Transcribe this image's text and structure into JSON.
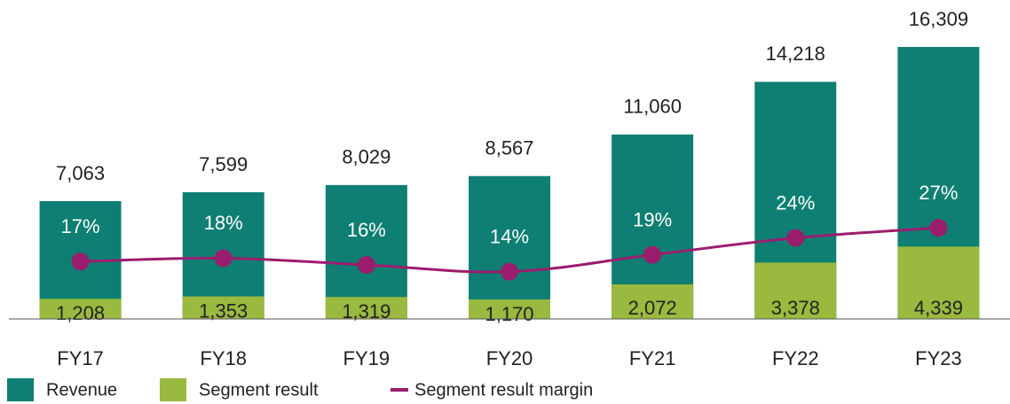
{
  "chart_data": {
    "type": "bar-line",
    "categories": [
      "FY17",
      "FY18",
      "FY19",
      "FY20",
      "FY21",
      "FY22",
      "FY23"
    ],
    "series": [
      {
        "name": "Revenue",
        "color": "#0e7f72",
        "values": [
          7063,
          7599,
          8029,
          8567,
          11060,
          14218,
          16309
        ],
        "value_labels": [
          "7,063",
          "7,599",
          "8,029",
          "8,567",
          "11,060",
          "14,218",
          "16,309"
        ]
      },
      {
        "name": "Segment result",
        "color": "#9ab93f",
        "values": [
          1208,
          1353,
          1319,
          1170,
          2072,
          3378,
          4339
        ],
        "value_labels": [
          "1,208",
          "1,353",
          "1,319",
          "1,170",
          "2,072",
          "3,378",
          "4,339"
        ]
      },
      {
        "name": "Segment result margin",
        "color": "#9b1d6e",
        "axis": "y2",
        "values": [
          17,
          18,
          16,
          14,
          19,
          24,
          27
        ],
        "value_labels": [
          "17%",
          "18%",
          "16%",
          "14%",
          "19%",
          "24%",
          "27%"
        ]
      }
    ],
    "ylim": [
      0,
      17000
    ],
    "y2lim": [
      0,
      84
    ],
    "legend": "bottom-left"
  }
}
